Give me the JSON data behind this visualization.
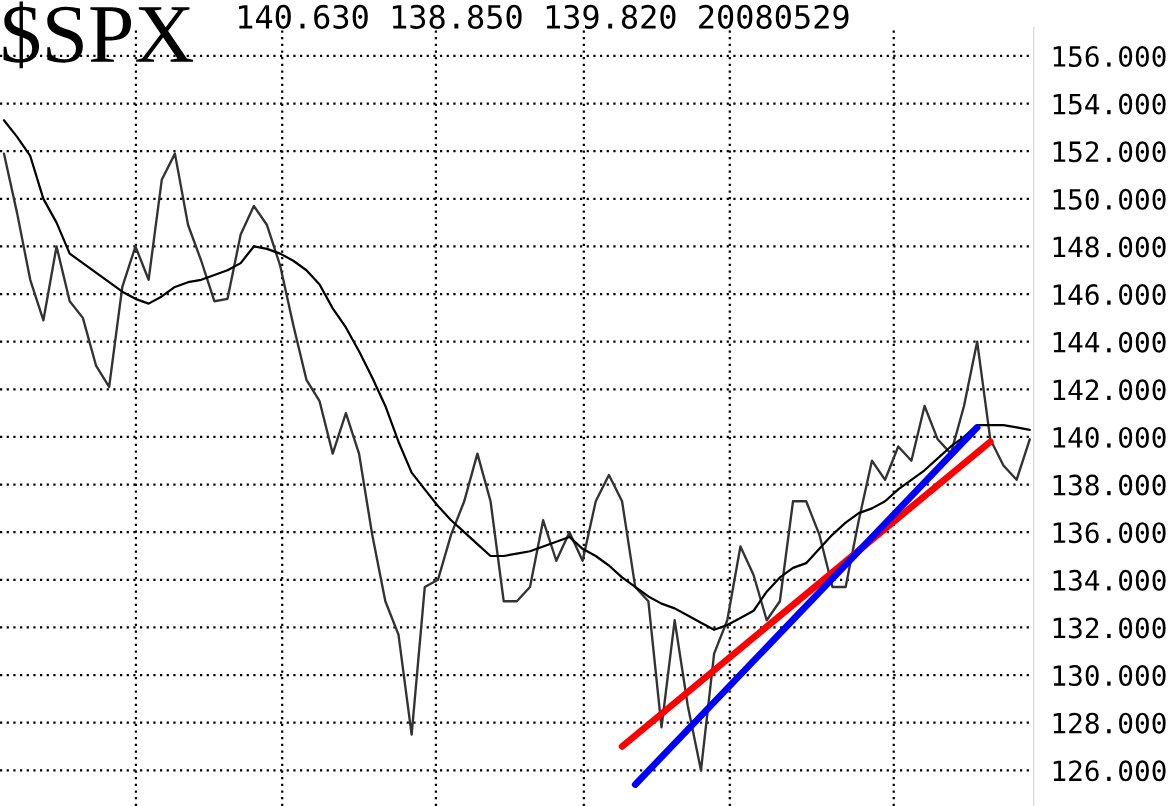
{
  "chart_data": {
    "type": "line",
    "title": "$SPX",
    "subtitle": "140.630 138.850 139.820 20080529",
    "categories": [
      null,
      null,
      null,
      null,
      null,
      null,
      null,
      null,
      null,
      null,
      null,
      null,
      null,
      null,
      null,
      null,
      null,
      null,
      null,
      null,
      null,
      null,
      null,
      null,
      null,
      null,
      null,
      null,
      null,
      null,
      null,
      null,
      null,
      null,
      null,
      null,
      null,
      null,
      null,
      null,
      null,
      null,
      null,
      null,
      null,
      null,
      null,
      null,
      null,
      null,
      null,
      null,
      null,
      null,
      null,
      null,
      null,
      null,
      null,
      null,
      null,
      null,
      null,
      null,
      null,
      null,
      null,
      null,
      null,
      null,
      null,
      null,
      null,
      null,
      null,
      null,
      null,
      null,
      null
    ],
    "series": [
      {
        "color": "#333333",
        "values": [
          151.9,
          149.4,
          146.6,
          144.9,
          148,
          145.7,
          145,
          143,
          142.1,
          146.3,
          148,
          146.6,
          150.8,
          151.9,
          148.9,
          147.4,
          145.7,
          145.8,
          148.5,
          149.7,
          148.9,
          147.2,
          144.7,
          142.4,
          141.5,
          139.3,
          141,
          139.3,
          135.9,
          133.1,
          131.7,
          127.5,
          133.7,
          134,
          135.9,
          137.3,
          139.3,
          137.3,
          133.1,
          133.1,
          133.7,
          136.5,
          134.8,
          136,
          134.8,
          137.3,
          138.4,
          137.3,
          133.7,
          133.1,
          127.8,
          132.3,
          128.7,
          126.0,
          130.9,
          132.3,
          135.4,
          134.2,
          132.3,
          133.1,
          137.3,
          137.3,
          135.9,
          133.7,
          133.7,
          136.5,
          139,
          138.2,
          139.6,
          139,
          141.3,
          139.9,
          139.3,
          141.3,
          144,
          139.9,
          138.8,
          138.2,
          139.9
        ]
      },
      {
        "color": "#000000",
        "values": [
          153.3,
          152.6,
          151.8,
          150.0,
          149.0,
          147.7,
          147.3,
          146.9,
          146.5,
          146.1,
          145.8,
          145.6,
          145.9,
          146.3,
          146.5,
          146.6,
          146.8,
          147.0,
          147.3,
          148.0,
          147.9,
          147.7,
          147.4,
          147.0,
          146.4,
          145.4,
          144.6,
          143.6,
          142.5,
          141.3,
          139.8,
          138.5,
          137.8,
          137.1,
          136.5,
          136.0,
          135.5,
          135.0,
          135.0,
          135.1,
          135.2,
          135.4,
          135.6,
          135.8,
          135.3,
          135.0,
          134.6,
          134.1,
          133.7,
          133.3,
          133.0,
          132.8,
          132.5,
          132.2,
          131.9,
          132.1,
          132.4,
          132.7,
          133.5,
          134.1,
          134.5,
          134.7,
          135.3,
          135.9,
          136.4,
          136.8,
          137.0,
          137.3,
          137.8,
          138.2,
          138.6,
          139.1,
          139.6,
          140.0,
          140.5,
          140.5,
          140.5,
          140.4,
          140.3
        ]
      },
      {
        "color": "#ff0000",
        "values": [
          null,
          null,
          null,
          null,
          null,
          null,
          null,
          null,
          null,
          null,
          null,
          null,
          null,
          null,
          null,
          null,
          null,
          null,
          null,
          null,
          null,
          null,
          null,
          null,
          null,
          null,
          null,
          null,
          null,
          null,
          null,
          null,
          null,
          null,
          null,
          null,
          null,
          null,
          null,
          null,
          null,
          null,
          null,
          null,
          null,
          null,
          null,
          127.0,
          null,
          null,
          null,
          null,
          null,
          null,
          null,
          null,
          null,
          null,
          null,
          null,
          null,
          null,
          null,
          null,
          null,
          null,
          null,
          null,
          null,
          null,
          null,
          null,
          null,
          null,
          null,
          139.8,
          null,
          null,
          null
        ]
      },
      {
        "color": "#0000ff",
        "values": [
          null,
          null,
          null,
          null,
          null,
          null,
          null,
          null,
          null,
          null,
          null,
          null,
          null,
          null,
          null,
          null,
          null,
          null,
          null,
          null,
          null,
          null,
          null,
          null,
          null,
          null,
          null,
          null,
          null,
          null,
          null,
          null,
          null,
          null,
          null,
          null,
          null,
          null,
          null,
          null,
          null,
          null,
          null,
          null,
          null,
          null,
          null,
          null,
          125.4,
          null,
          null,
          null,
          null,
          null,
          null,
          null,
          null,
          null,
          null,
          null,
          null,
          null,
          null,
          null,
          null,
          null,
          null,
          null,
          null,
          null,
          null,
          null,
          null,
          null,
          140.4,
          null,
          null,
          null,
          null
        ]
      }
    ],
    "ylim": [
      124.5,
      157.2
    ],
    "yticks": [
      {
        "value": 126,
        "label": "126.000"
      },
      {
        "value": 128,
        "label": "128.000"
      },
      {
        "value": 130,
        "label": "130.000"
      },
      {
        "value": 132,
        "label": "132.000"
      },
      {
        "value": 134,
        "label": "134.000"
      },
      {
        "value": 136,
        "label": "136.000"
      },
      {
        "value": 138,
        "label": "138.000"
      },
      {
        "value": 140,
        "label": "140.000"
      },
      {
        "value": 142,
        "label": "142.000"
      },
      {
        "value": 144,
        "label": "144.000"
      },
      {
        "value": 146,
        "label": "146.000"
      },
      {
        "value": 148,
        "label": "148.000"
      },
      {
        "value": 150,
        "label": "150.000"
      },
      {
        "value": 152,
        "label": "152.000"
      },
      {
        "value": 154,
        "label": "154.000"
      },
      {
        "value": 156,
        "label": "156.000"
      }
    ],
    "grid": true,
    "legend": false,
    "marker": "none",
    "line_style": "solid"
  }
}
